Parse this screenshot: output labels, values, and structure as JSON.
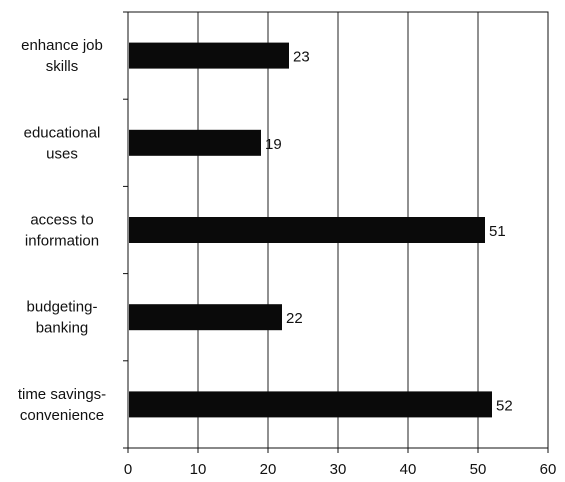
{
  "chart_data": {
    "type": "bar",
    "orientation": "horizontal",
    "categories": [
      [
        "enhance job",
        "skills"
      ],
      [
        "educational",
        "uses"
      ],
      [
        "access to",
        "information"
      ],
      [
        "budgeting-",
        "banking"
      ],
      [
        "time savings-",
        "convenience"
      ]
    ],
    "values": [
      23,
      19,
      51,
      22,
      52
    ],
    "data_labels": [
      "23",
      "19",
      "51",
      "22",
      "52"
    ],
    "xlim": [
      0,
      60
    ],
    "xticks": [
      0,
      10,
      20,
      30,
      40,
      50,
      60
    ],
    "grid": "vertical",
    "bar_color": "#0a0a0a",
    "title": "",
    "xlabel": "",
    "ylabel": ""
  }
}
